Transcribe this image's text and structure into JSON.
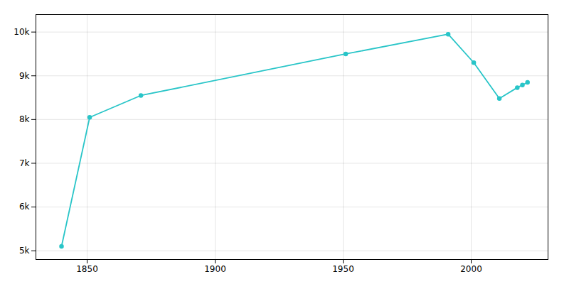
{
  "chart_data": {
    "type": "line",
    "x": [
      1840,
      1851,
      1871,
      1951,
      1991,
      2001,
      2011,
      2018,
      2020,
      2022
    ],
    "values": [
      5100,
      8050,
      8550,
      9500,
      9950,
      9300,
      8480,
      8730,
      8790,
      8850
    ],
    "color": "#29C5C8",
    "marker": "circle",
    "xlim": [
      1830,
      2030
    ],
    "xticks": [
      1850,
      1900,
      1950,
      2000
    ],
    "ylim": [
      4800,
      10400
    ],
    "yticks": [
      {
        "value": 5000,
        "label": "5k"
      },
      {
        "value": 6000,
        "label": "6k"
      },
      {
        "value": 7000,
        "label": "7k"
      },
      {
        "value": 8000,
        "label": "8k"
      },
      {
        "value": 9000,
        "label": "9k"
      },
      {
        "value": 10000,
        "label": "10k"
      }
    ],
    "grid": true
  }
}
